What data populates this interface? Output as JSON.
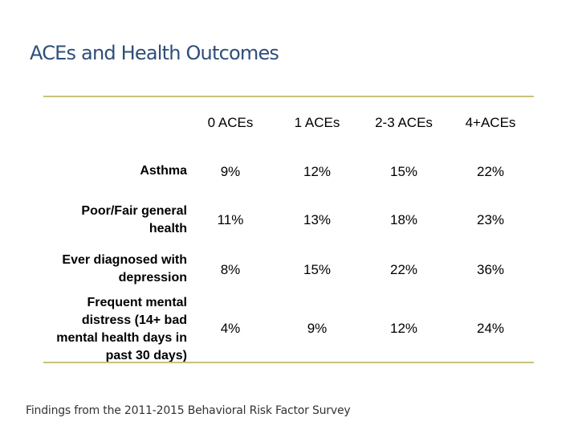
{
  "slide": {
    "title": "ACEs and Health Outcomes",
    "footnote": "Findings from the 2011-2015 Behavioral Risk Factor Survey"
  },
  "colors": {
    "title": "#2f4e79",
    "rule": "#c9c27a",
    "footnote": "#333333",
    "text": "#000000"
  },
  "table": {
    "headers": [
      "0 ACEs",
      "1 ACEs",
      "2-3 ACEs",
      "4+ACEs"
    ],
    "rows": [
      {
        "label": "Asthma",
        "values": [
          "9%",
          "12%",
          "15%",
          "22%"
        ]
      },
      {
        "label": "Poor/Fair general health",
        "values": [
          "11%",
          "13%",
          "18%",
          "23%"
        ]
      },
      {
        "label": "Ever diagnosed with depression",
        "values": [
          "8%",
          "15%",
          "22%",
          "36%"
        ]
      },
      {
        "label": "Frequent mental distress (14+ bad mental health days in past 30 days)",
        "values": [
          "4%",
          "9%",
          "12%",
          "24%"
        ]
      }
    ]
  }
}
